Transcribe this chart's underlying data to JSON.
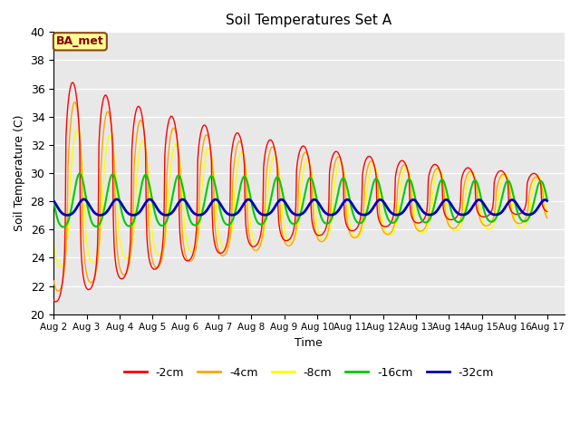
{
  "title": "Soil Temperatures Set A",
  "xlabel": "Time",
  "ylabel": "Soil Temperature (C)",
  "ylim": [
    20,
    40
  ],
  "annotation": "BA_met",
  "plot_bg_color": "#e8e8e8",
  "fig_bg_color": "#ffffff",
  "series_colors": {
    "-2cm": "#ff0000",
    "-4cm": "#ffa500",
    "-8cm": "#ffff00",
    "-16cm": "#00cc00",
    "-32cm": "#0000bb"
  },
  "xtick_labels": [
    "Aug 2",
    "Aug 3",
    "Aug 4",
    "Aug 5",
    "Aug 6",
    "Aug 7",
    "Aug 8",
    "Aug 9",
    "Aug 10",
    "Aug 11",
    "Aug 12",
    "Aug 13",
    "Aug 14",
    "Aug 15",
    "Aug 16",
    "Aug 17"
  ],
  "n_days": 15,
  "n_pts_per_day": 48,
  "series_params": {
    "-2cm": {
      "amp1": 8.5,
      "amp2": 0.0,
      "mean": 28.5,
      "phase_hr": 14.0,
      "amp_decay": 0.12,
      "mean_decay": 0.0,
      "sharpness": 3.0
    },
    "-4cm": {
      "amp1": 7.5,
      "amp2": 0.0,
      "mean": 28.0,
      "phase_hr": 15.5,
      "amp_decay": 0.1,
      "mean_decay": 0.0,
      "sharpness": 2.0
    },
    "-8cm": {
      "amp1": 5.5,
      "amp2": 0.0,
      "mean": 27.8,
      "phase_hr": 17.0,
      "amp_decay": 0.07,
      "mean_decay": 0.0,
      "sharpness": 1.5
    },
    "-16cm": {
      "amp1": 2.2,
      "amp2": 0.0,
      "mean": 27.8,
      "phase_hr": 19.0,
      "amp_decay": 0.02,
      "mean_decay": 0.0,
      "sharpness": 1.0
    },
    "-32cm": {
      "amp1": 0.65,
      "amp2": 0.0,
      "mean": 27.5,
      "phase_hr": 22.0,
      "amp_decay": 0.005,
      "mean_decay": 0.0,
      "sharpness": 1.0
    }
  },
  "line_widths": {
    "-2cm": 1.0,
    "-4cm": 1.0,
    "-8cm": 1.0,
    "-16cm": 1.5,
    "-32cm": 2.0
  },
  "zorders": {
    "-8cm": 2,
    "-4cm": 3,
    "-2cm": 4,
    "-16cm": 5,
    "-32cm": 6
  }
}
